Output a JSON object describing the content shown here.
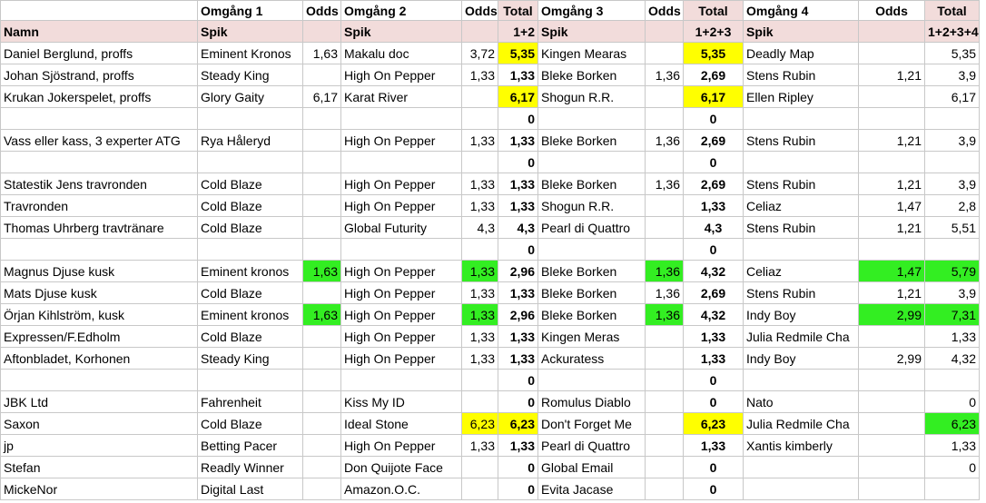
{
  "table": {
    "header": [
      [
        null,
        "Omgång 1",
        "Odds",
        "Omgång 2",
        "Odds",
        "Total",
        "Omgång 3",
        "Odds",
        "Total",
        "Omgång 4",
        "Odds",
        "Total"
      ],
      [
        "Namn",
        "Spik",
        null,
        "Spik",
        null,
        "1+2",
        "Spik",
        null,
        "1+2+3",
        "Spik",
        null,
        "1+2+3+4"
      ]
    ],
    "rows": [
      [
        "Daniel Berglund, proffs",
        "Eminent Kronos",
        "1,63",
        "Makalu doc",
        "3,72",
        "5,35",
        "Kingen Mearas",
        null,
        "5,35",
        "Deadly Map",
        null,
        "5,35"
      ],
      [
        "Johan Sjöstrand, proffs",
        "Steady King",
        null,
        "High On Pepper",
        "1,33",
        "1,33",
        "Bleke Borken",
        "1,36",
        "2,69",
        "Stens Rubin",
        "1,21",
        "3,9"
      ],
      [
        "Krukan Jokerspelet, proffs",
        "Glory Gaity",
        "6,17",
        "Karat River",
        null,
        "6,17",
        "Shogun R.R.",
        null,
        "6,17",
        "Ellen Ripley",
        null,
        "6,17"
      ],
      [
        null,
        null,
        null,
        null,
        null,
        "0",
        null,
        null,
        "0",
        null,
        null,
        null
      ],
      [
        "Vass eller kass, 3 experter ATG",
        "Rya Håleryd",
        null,
        "High On Pepper",
        "1,33",
        "1,33",
        "Bleke Borken",
        "1,36",
        "2,69",
        "Stens Rubin",
        "1,21",
        "3,9"
      ],
      [
        null,
        null,
        null,
        null,
        null,
        "0",
        null,
        null,
        "0",
        null,
        null,
        null
      ],
      [
        "Statestik Jens travronden",
        "Cold Blaze",
        null,
        "High On Pepper",
        "1,33",
        "1,33",
        "Bleke Borken",
        "1,36",
        "2,69",
        "Stens Rubin",
        "1,21",
        "3,9"
      ],
      [
        "Travronden",
        "Cold Blaze",
        null,
        "High On Pepper",
        "1,33",
        "1,33",
        "Shogun R.R.",
        null,
        "1,33",
        "Celiaz",
        "1,47",
        "2,8"
      ],
      [
        "Thomas Uhrberg travtränare",
        "Cold Blaze",
        null,
        "Global Futurity",
        "4,3",
        "4,3",
        "Pearl di Quattro",
        null,
        "4,3",
        "Stens Rubin",
        "1,21",
        "5,51"
      ],
      [
        null,
        null,
        null,
        null,
        null,
        "0",
        null,
        null,
        "0",
        null,
        null,
        null
      ],
      [
        "Magnus Djuse kusk",
        "Eminent kronos",
        "1,63",
        "High On Pepper",
        "1,33",
        "2,96",
        "Bleke Borken",
        "1,36",
        "4,32",
        "Celiaz",
        "1,47",
        "5,79"
      ],
      [
        "Mats Djuse kusk",
        "Cold Blaze",
        null,
        "High On Pepper",
        "1,33",
        "1,33",
        "Bleke Borken",
        "1,36",
        "2,69",
        "Stens Rubin",
        "1,21",
        "3,9"
      ],
      [
        "Örjan Kihlström, kusk",
        "Eminent kronos",
        "1,63",
        "High On Pepper",
        "1,33",
        "2,96",
        "Bleke Borken",
        "1,36",
        "4,32",
        "Indy Boy",
        "2,99",
        "7,31"
      ],
      [
        "Expressen/F.Edholm",
        "Cold Blaze",
        null,
        "High On Pepper",
        "1,33",
        "1,33",
        "Kingen Meras",
        null,
        "1,33",
        "Julia Redmile Cha",
        null,
        "1,33"
      ],
      [
        "Aftonbladet, Korhonen",
        "Steady King",
        null,
        "High On Pepper",
        "1,33",
        "1,33",
        "Ackuratess",
        null,
        "1,33",
        "Indy Boy",
        "2,99",
        "4,32"
      ],
      [
        null,
        null,
        null,
        null,
        null,
        "0",
        null,
        null,
        "0",
        null,
        null,
        null
      ],
      [
        "JBK Ltd",
        "Fahrenheit",
        null,
        "Kiss My ID",
        null,
        "0",
        "Romulus Diablo",
        null,
        "0",
        "Nato",
        null,
        "0"
      ],
      [
        "Saxon",
        "Cold Blaze",
        null,
        "Ideal Stone",
        "6,23",
        "6,23",
        "Don't Forget Me",
        null,
        "6,23",
        "Julia Redmile Cha",
        null,
        "6,23"
      ],
      [
        "jp",
        "Betting Pacer",
        null,
        "High On Pepper",
        "1,33",
        "1,33",
        "Pearl di Quattro",
        null,
        "1,33",
        "Xantis kimberly",
        null,
        "1,33"
      ],
      [
        "Stefan",
        "Readly Winner",
        null,
        "Don Quijote Face",
        null,
        "0",
        "Global Email",
        null,
        "0",
        null,
        null,
        "0"
      ],
      [
        "MickeNor",
        "Digital Last",
        null,
        "Amazon.O.C.",
        null,
        "0",
        "Evita Jacase",
        null,
        "0",
        null,
        null,
        null
      ]
    ]
  }
}
